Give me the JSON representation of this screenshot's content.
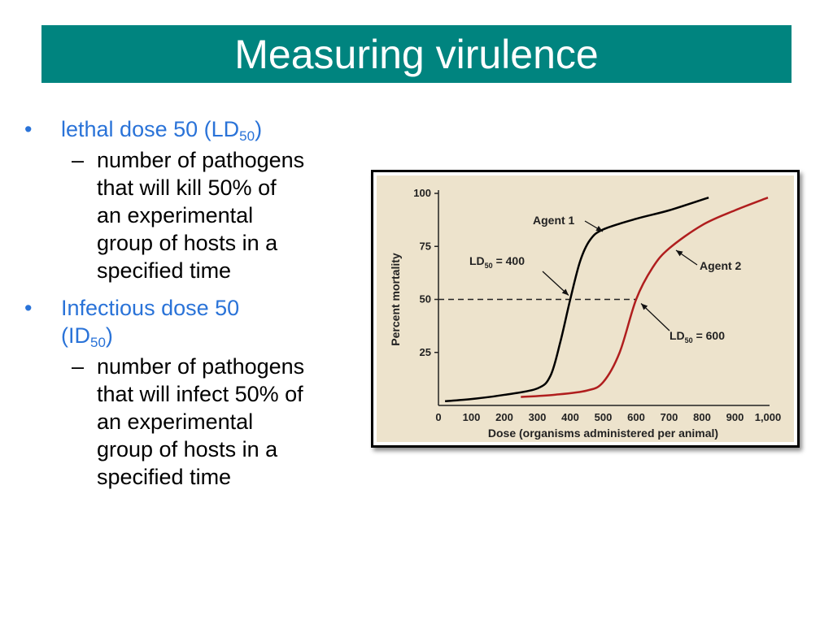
{
  "slide": {
    "title": "Measuring virulence",
    "title_bg_color": "#00847f"
  },
  "bullets": [
    {
      "text_main": "lethal dose 50 (LD",
      "text_sub": "50",
      "text_end": ")",
      "sub_bullet": [
        "number of pathogens",
        "that will kill 50% of",
        "an experimental",
        "group of hosts in a",
        "specified time"
      ]
    },
    {
      "text_main_lines": [
        "Infectious dose 50",
        "(ID"
      ],
      "text_sub": "50",
      "text_end": ")",
      "sub_bullet": [
        "number of pathogens",
        "that will infect 50% of",
        "an experimental",
        "group of hosts in a",
        "specified time"
      ]
    }
  ],
  "bullet_glyph": "•",
  "dash_glyph": "–",
  "colors": {
    "bullet_text": "#2a73d8",
    "chart_bg": "#ede3cc",
    "agent1": "#000000",
    "agent2": "#b01e1e"
  },
  "chart_data": {
    "type": "line",
    "title": "",
    "xlabel": "Dose (organisms administered per animal)",
    "ylabel": "Percent mortality",
    "xlim": [
      0,
      1000
    ],
    "ylim": [
      0,
      100
    ],
    "x_ticks": [
      "0",
      "100",
      "200",
      "300",
      "400",
      "500",
      "600",
      "700",
      "800",
      "900",
      "1,000"
    ],
    "y_ticks": [
      "25",
      "50",
      "75",
      "100"
    ],
    "y_tick_values": [
      25,
      50,
      75,
      100
    ],
    "series": [
      {
        "name": "Agent 1",
        "color": "#000000",
        "x": [
          20,
          100,
          200,
          300,
          340,
          370,
          400,
          430,
          460,
          500,
          600,
          700,
          820
        ],
        "y": [
          2,
          3,
          5,
          8,
          14,
          30,
          50,
          68,
          78,
          83,
          88,
          92,
          98
        ]
      },
      {
        "name": "Agent 2",
        "color": "#b01e1e",
        "x": [
          250,
          350,
          450,
          500,
          550,
          600,
          650,
          700,
          800,
          900,
          1000
        ],
        "y": [
          4,
          5,
          7,
          11,
          25,
          50,
          65,
          74,
          85,
          92,
          98
        ]
      }
    ],
    "reference_line": {
      "y": 50,
      "x_end": 600,
      "style": "dashed"
    },
    "annotations": [
      {
        "label_main": "LD",
        "label_sub": "50",
        "label_value": " = 400",
        "point_x": 400,
        "point_y": 50
      },
      {
        "label_main": "LD",
        "label_sub": "50",
        "label_value": " = 600",
        "point_x": 600,
        "point_y": 50
      }
    ],
    "series_labels": [
      "Agent 1",
      "Agent 2"
    ]
  }
}
